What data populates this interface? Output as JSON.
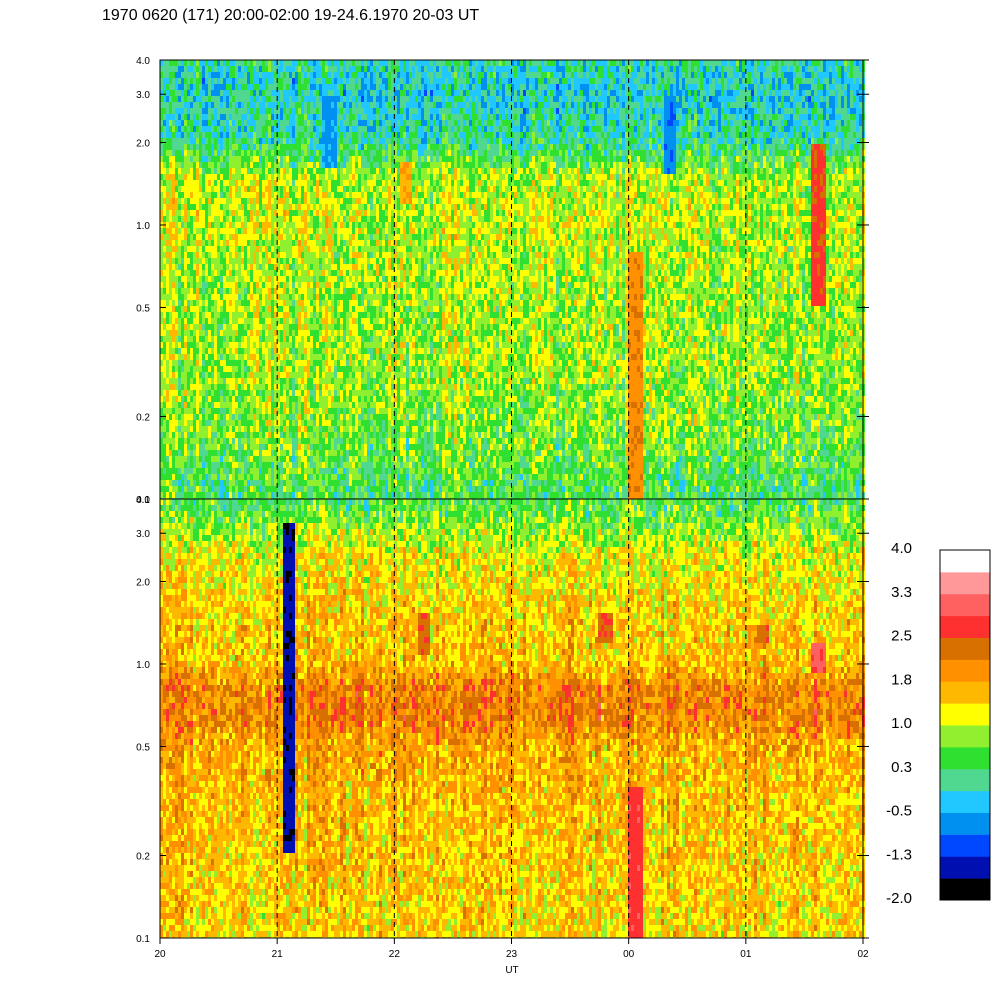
{
  "chart_data": {
    "type": "heatmap",
    "title": "1970 0620 (171) 20:00-02:00 19-24.6.1970  20-03 UT",
    "xlabel": "UT",
    "x_ticks": [
      "20",
      "21",
      "22",
      "23",
      "00",
      "01",
      "02"
    ],
    "x_range_hours": [
      0,
      6
    ],
    "hour_markers": [
      1,
      2,
      3,
      4,
      5
    ],
    "panels": [
      {
        "name": "top",
        "y_scale": "log",
        "ylim": [
          0.1,
          4.0
        ],
        "y_ticks": [
          {
            "value": 0.1,
            "label": "0.1"
          },
          {
            "value": 0.2,
            "label": "0.2"
          },
          {
            "value": 0.5,
            "label": "0.5"
          },
          {
            "value": 1.0,
            "label": "1.0"
          },
          {
            "value": 2.0,
            "label": "2.0"
          },
          {
            "value": 3.0,
            "label": "3.0"
          },
          {
            "value": 4.0,
            "label": "4.0"
          }
        ],
        "frequency_profile": [
          {
            "f": 0.1,
            "level": 0.3
          },
          {
            "f": 0.15,
            "level": 0.6
          },
          {
            "f": 0.3,
            "level": 0.85
          },
          {
            "f": 0.6,
            "level": 0.85
          },
          {
            "f": 1.0,
            "level": 1.0
          },
          {
            "f": 1.5,
            "level": 0.9
          },
          {
            "f": 2.0,
            "level": 0.1
          },
          {
            "f": 3.0,
            "level": -0.2
          },
          {
            "f": 4.0,
            "level": 0.0
          }
        ],
        "features": [
          {
            "t": 5.62,
            "f_min": 0.5,
            "f_max": 2.0,
            "level": 2.6
          },
          {
            "t": 4.05,
            "f_min": 0.1,
            "f_max": 0.8,
            "level": 2.0
          },
          {
            "t": 2.1,
            "f_min": 1.2,
            "f_max": 1.7,
            "level": 1.7
          },
          {
            "t": 4.35,
            "f_min": 1.5,
            "f_max": 3.0,
            "level": -0.8
          },
          {
            "t": 1.45,
            "f_min": 1.6,
            "f_max": 3.0,
            "level": -0.6
          }
        ]
      },
      {
        "name": "bottom",
        "y_scale": "log",
        "ylim": [
          0.1,
          4.0
        ],
        "y_ticks": [
          {
            "value": 0.1,
            "label": "0.1"
          },
          {
            "value": 0.2,
            "label": "0.2"
          },
          {
            "value": 0.5,
            "label": "0.5"
          },
          {
            "value": 1.0,
            "label": "1.0"
          },
          {
            "value": 2.0,
            "label": "2.0"
          },
          {
            "value": 3.0,
            "label": "3.0"
          },
          {
            "value": 4.0,
            "label": "4.0"
          }
        ],
        "frequency_profile": [
          {
            "f": 0.1,
            "level": 1.4
          },
          {
            "f": 0.3,
            "level": 1.6
          },
          {
            "f": 0.5,
            "level": 1.75
          },
          {
            "f": 0.6,
            "level": 2.1
          },
          {
            "f": 0.8,
            "level": 2.15
          },
          {
            "f": 1.0,
            "level": 1.6
          },
          {
            "f": 1.5,
            "level": 1.5
          },
          {
            "f": 2.5,
            "level": 1.2
          },
          {
            "f": 4.0,
            "level": 0.4
          }
        ],
        "features": [
          {
            "t": 4.05,
            "f_min": 0.1,
            "f_max": 0.35,
            "level": 2.7
          },
          {
            "t": 5.62,
            "f_min": 0.95,
            "f_max": 1.2,
            "level": 3.0
          },
          {
            "t": 1.1,
            "f_min": 0.2,
            "f_max": 3.2,
            "level": -1.5
          },
          {
            "t": 2.25,
            "f_min": 1.1,
            "f_max": 1.5,
            "level": 2.4
          },
          {
            "t": 3.8,
            "f_min": 1.2,
            "f_max": 1.5,
            "level": 2.4
          },
          {
            "t": 5.15,
            "f_min": 1.2,
            "f_max": 1.4,
            "level": 2.4
          }
        ]
      }
    ],
    "colorbar": {
      "labels": [
        "4.0",
        "3.3",
        "2.5",
        "1.8",
        "1.0",
        "0.3",
        "-0.5",
        "-1.3",
        "-2.0"
      ],
      "range": [
        -2.0,
        4.0
      ],
      "colors": [
        "#000000",
        "#0010b0",
        "#0048ff",
        "#0090f0",
        "#20c8ff",
        "#50d890",
        "#30e030",
        "#90f030",
        "#ffff00",
        "#ffb800",
        "#ff9000",
        "#d87000",
        "#ff3030",
        "#ff6060",
        "#ff9898",
        "#ffffff"
      ]
    }
  }
}
